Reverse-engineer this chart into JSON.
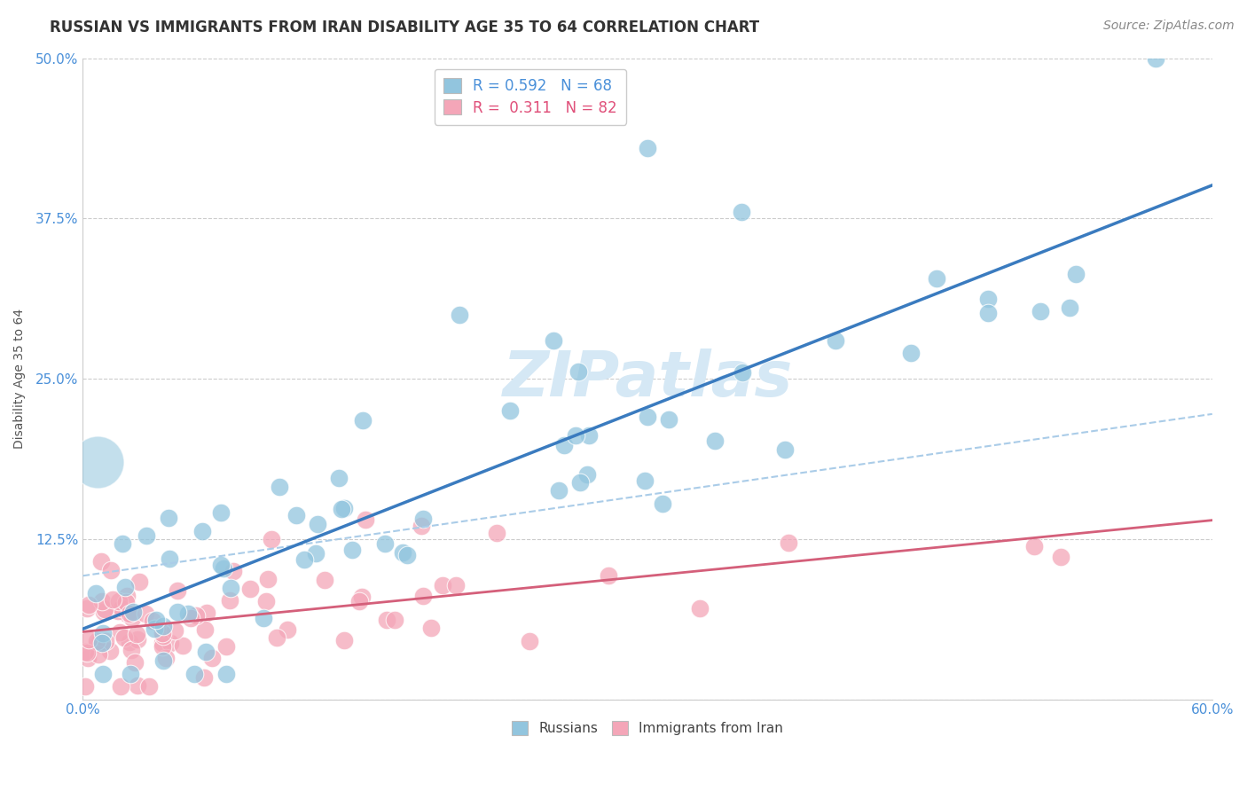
{
  "title": "RUSSIAN VS IMMIGRANTS FROM IRAN DISABILITY AGE 35 TO 64 CORRELATION CHART",
  "source": "Source: ZipAtlas.com",
  "ylabel": "Disability Age 35 to 64",
  "xlim": [
    0.0,
    0.6
  ],
  "ylim": [
    0.0,
    0.5
  ],
  "xtick_labels": [
    "0.0%",
    "",
    "",
    "",
    "",
    "",
    "60.0%"
  ],
  "ytick_labels": [
    "",
    "12.5%",
    "25.0%",
    "37.5%",
    "50.0%"
  ],
  "legend_r1": "R = 0.592",
  "legend_n1": "N = 68",
  "legend_r2": "R =  0.311",
  "legend_n2": "N = 82",
  "blue_color": "#92c5de",
  "pink_color": "#f4a6b8",
  "blue_line_color": "#3a7bbf",
  "pink_line_color": "#d45f7a",
  "blue_dash_color": "#aacce8",
  "title_fontsize": 12,
  "axis_label_fontsize": 10,
  "tick_fontsize": 11,
  "source_fontsize": 10,
  "background_color": "#ffffff",
  "grid_color": "#cccccc",
  "watermark_color": "#d5e8f5",
  "tick_color": "#4a90d9"
}
